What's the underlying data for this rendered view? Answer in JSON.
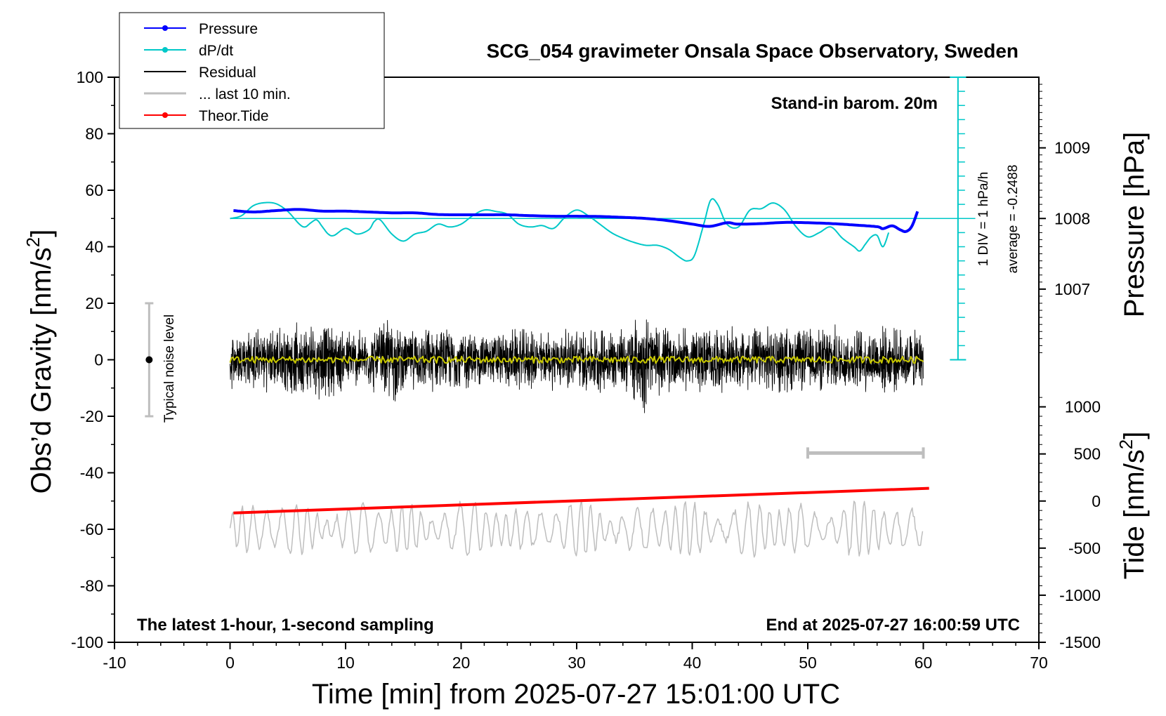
{
  "chart_data": {
    "type": "line",
    "title": "SCG_054 gravimeter Onsala Space Observatory, Sweden",
    "xlabel": "Time [min] from 2025-07-27 15:01:00 UTC",
    "ylabel_left": "Obs’d Gravity [nm/s²]",
    "ylabel_left_base": "Obs’d Gravity [nm/s",
    "ylabel_left_sup": "2",
    "ylabel_left_end": "]",
    "ylabel_right_pressure": "Pressure [hPa]",
    "ylabel_right_tide": "Tide [nm/s²]",
    "ylabel_right_tide_base": "Tide [nm/s",
    "ylabel_right_tide_sup": "2",
    "ylabel_right_tide_end": "]",
    "xlim": [
      -10,
      70
    ],
    "ylim": [
      -100,
      100
    ],
    "x_ticks": [
      "-10",
      "0",
      "10",
      "20",
      "30",
      "40",
      "50",
      "60",
      "70"
    ],
    "y_ticks": [
      "-100",
      "-80",
      "-60",
      "-40",
      "-20",
      "0",
      "20",
      "40",
      "60",
      "80",
      "100"
    ],
    "pressure_ticks": [
      "1007",
      "1008",
      "1009"
    ],
    "tide_ticks": [
      "-1500",
      "-1000",
      "-500",
      "0",
      "500",
      "1000"
    ],
    "grid": false,
    "legend_position": "top-left",
    "legend": [
      {
        "label": "Pressure",
        "color": "#0000ff",
        "marker": true
      },
      {
        "label": "dP/dt",
        "color": "#00c8c8",
        "marker": true
      },
      {
        "label": "Residual",
        "color": "#000000",
        "marker": false
      },
      {
        "label": "... last 10 min.",
        "color": "#bebebe",
        "marker": false
      },
      {
        "label": "Theor.Tide",
        "color": "#ff0000",
        "marker": true
      }
    ],
    "annotations": {
      "barom": "Stand-in barom. 20m",
      "div": "1 DIV = 1 hPa/h",
      "average": "average = -0.2488",
      "latest": "The latest 1-hour, 1-second sampling",
      "end": "End at 2025-07-27 16:00:59 UTC",
      "noise": "Typical noise level"
    },
    "noise_level": {
      "x": -7,
      "center": 0,
      "min": -20,
      "max": 20
    },
    "window_bar": {
      "x_start": 50,
      "x_end": 60,
      "level": -33
    },
    "pressure": {
      "color": "#0000ff",
      "points": [
        [
          0.3,
          52.8
        ],
        [
          2,
          52.3
        ],
        [
          4,
          52.8
        ],
        [
          6,
          53.2
        ],
        [
          8,
          52.6
        ],
        [
          10,
          52.6
        ],
        [
          12,
          52.3
        ],
        [
          14,
          52.0
        ],
        [
          16,
          52.0
        ],
        [
          18,
          51.4
        ],
        [
          20,
          51.3
        ],
        [
          22,
          51.3
        ],
        [
          24,
          51.3
        ],
        [
          26,
          51.0
        ],
        [
          28,
          50.8
        ],
        [
          30,
          50.8
        ],
        [
          32,
          50.7
        ],
        [
          34,
          50.4
        ],
        [
          36,
          50.0
        ],
        [
          38,
          49.2
        ],
        [
          40,
          48.0
        ],
        [
          41.5,
          47.2
        ],
        [
          43,
          48.5
        ],
        [
          44,
          48.0
        ],
        [
          46,
          48.2
        ],
        [
          48,
          48.6
        ],
        [
          50,
          48.5
        ],
        [
          52,
          48.2
        ],
        [
          54,
          47.7
        ],
        [
          56,
          47.1
        ],
        [
          56.5,
          46.4
        ],
        [
          57.3,
          47.4
        ],
        [
          58,
          46.0
        ],
        [
          58.5,
          45.4
        ],
        [
          59,
          47.2
        ],
        [
          59.5,
          52.5
        ]
      ]
    },
    "dpdt": {
      "color": "#00c8c8",
      "zero_level": 50,
      "points": [
        [
          0,
          50
        ],
        [
          1,
          51
        ],
        [
          2,
          54.5
        ],
        [
          3,
          55.6
        ],
        [
          4,
          55.2
        ],
        [
          5,
          52.5
        ],
        [
          6,
          48
        ],
        [
          6.5,
          47
        ],
        [
          7,
          48.5
        ],
        [
          7.5,
          49.5
        ],
        [
          8,
          47
        ],
        [
          8.5,
          44.5
        ],
        [
          9,
          44
        ],
        [
          10,
          46.5
        ],
        [
          11,
          44.5
        ],
        [
          12,
          46
        ],
        [
          12.5,
          49
        ],
        [
          13,
          49.5
        ],
        [
          14,
          44.5
        ],
        [
          15,
          42
        ],
        [
          16,
          44.5
        ],
        [
          17,
          45.5
        ],
        [
          18,
          48
        ],
        [
          19,
          47
        ],
        [
          20,
          48
        ],
        [
          21,
          51
        ],
        [
          22,
          53
        ],
        [
          23,
          52.5
        ],
        [
          24,
          51.5
        ],
        [
          25,
          48
        ],
        [
          26,
          47
        ],
        [
          27,
          47.5
        ],
        [
          28,
          46.5
        ],
        [
          29,
          50.5
        ],
        [
          30,
          53
        ],
        [
          31,
          51
        ],
        [
          32,
          48
        ],
        [
          33,
          45
        ],
        [
          34,
          43
        ],
        [
          35,
          41.5
        ],
        [
          36,
          40.5
        ],
        [
          37,
          40.5
        ],
        [
          38,
          39
        ],
        [
          39,
          36
        ],
        [
          39.6,
          35
        ],
        [
          40.2,
          37
        ],
        [
          41,
          48
        ],
        [
          41.6,
          56.5
        ],
        [
          42.2,
          55
        ],
        [
          43,
          48
        ],
        [
          44,
          47
        ],
        [
          45,
          53
        ],
        [
          46,
          53.5
        ],
        [
          47,
          55.5
        ],
        [
          48,
          53
        ],
        [
          49,
          47
        ],
        [
          50,
          43.5
        ],
        [
          51,
          45
        ],
        [
          52,
          47
        ],
        [
          53,
          43
        ],
        [
          54,
          40
        ],
        [
          54.5,
          38.5
        ],
        [
          55,
          41
        ],
        [
          55.5,
          43.5
        ],
        [
          56,
          44
        ],
        [
          56.5,
          40
        ],
        [
          57,
          45
        ]
      ]
    },
    "residual": {
      "color": "#000000",
      "x_start": 0,
      "x_end": 60,
      "envelope": [
        [
          0,
          11
        ],
        [
          3,
          12
        ],
        [
          5,
          13
        ],
        [
          8,
          15
        ],
        [
          10,
          12
        ],
        [
          12,
          11
        ],
        [
          13,
          14
        ],
        [
          14,
          18
        ],
        [
          15,
          11
        ],
        [
          17,
          12
        ],
        [
          20,
          12
        ],
        [
          22,
          10
        ],
        [
          25,
          12
        ],
        [
          27,
          11
        ],
        [
          30,
          12
        ],
        [
          32,
          13
        ],
        [
          34,
          12
        ],
        [
          36,
          20
        ],
        [
          37,
          13
        ],
        [
          39,
          12
        ],
        [
          41,
          13
        ],
        [
          43,
          12
        ],
        [
          45,
          12
        ],
        [
          47,
          13
        ],
        [
          50,
          12
        ],
        [
          52,
          13
        ],
        [
          54,
          12
        ],
        [
          56,
          13
        ],
        [
          58,
          12
        ],
        [
          60,
          11
        ]
      ]
    },
    "residual_mean": {
      "color": "#c8c800",
      "level": 0,
      "jitter": 1.2
    },
    "last10": {
      "color": "#bebebe",
      "center": -60,
      "amplitude": 8,
      "x_start": 0,
      "x_end": 60
    },
    "tide": {
      "color": "#ff0000",
      "points": [
        [
          0.3,
          -54.2
        ],
        [
          60.5,
          -45.5
        ]
      ]
    }
  }
}
